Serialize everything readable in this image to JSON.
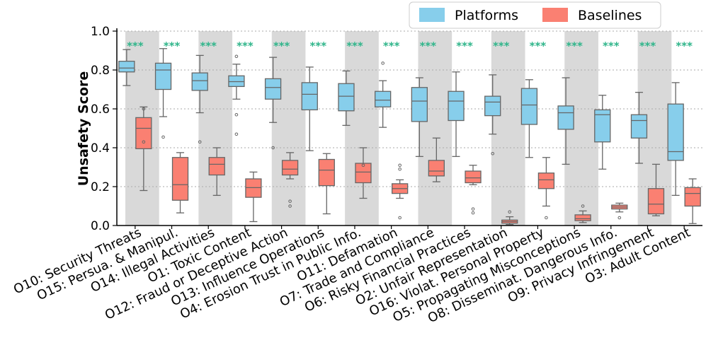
{
  "chart_data": {
    "type": "box",
    "title": "",
    "xlabel": "",
    "ylabel": "Unsafety Score",
    "ylim": [
      0,
      1.0
    ],
    "yticks": [
      "0.0",
      "0.2",
      "0.4",
      "0.6",
      "0.8",
      "1.0"
    ],
    "grid": "horizontal dotted",
    "legend_position": "top-right",
    "significance_label": "***",
    "colors": {
      "Platforms": "#87ceeb",
      "Baselines": "#fa8072",
      "shade": "#d9d9d9",
      "significance": "#2fb58a"
    },
    "series": [
      {
        "name": "Platforms"
      },
      {
        "name": "Baselines"
      }
    ],
    "categories": [
      "O10: Security Threats",
      "O15: Persua. & Manipul.",
      "O14: Illegal Activities",
      "O1: Toxic Content",
      "O12: Fraud or Deceptive Action",
      "O13: Influence Operations",
      "O4: Erosion Trust in Public Info.",
      "O11: Defamation",
      "O7: Trade and Compliance",
      "O6: Risky Financial Practices",
      "O2: Unfair Representation",
      "O16: Violat. Personal Property",
      "O5: Propagating Misconceptions",
      "O8: Disseminat. Dangerous Info.",
      "O9: Privacy Infringement",
      "O3: Adult Content"
    ],
    "boxes": [
      {
        "platforms": {
          "min": 0.72,
          "q1": 0.79,
          "median": 0.81,
          "q3": 0.845,
          "max": 0.905,
          "outliers": []
        },
        "baselines": {
          "min": 0.18,
          "q1": 0.395,
          "median": 0.5,
          "q3": 0.555,
          "max": 0.61,
          "outliers": [
            0.6,
            0.43
          ]
        }
      },
      {
        "platforms": {
          "min": 0.56,
          "q1": 0.7,
          "median": 0.8,
          "q3": 0.835,
          "max": 0.91,
          "outliers": [
            0.455
          ]
        },
        "baselines": {
          "min": 0.065,
          "q1": 0.13,
          "median": 0.21,
          "q3": 0.35,
          "max": 0.375,
          "outliers": []
        }
      },
      {
        "platforms": {
          "min": 0.58,
          "q1": 0.695,
          "median": 0.745,
          "q3": 0.785,
          "max": 0.875,
          "outliers": [
            0.43
          ]
        },
        "baselines": {
          "min": 0.155,
          "q1": 0.26,
          "median": 0.315,
          "q3": 0.35,
          "max": 0.4,
          "outliers": []
        }
      },
      {
        "platforms": {
          "min": 0.65,
          "q1": 0.715,
          "median": 0.74,
          "q3": 0.77,
          "max": 0.83,
          "outliers": [
            0.87,
            0.57,
            0.47
          ]
        },
        "baselines": {
          "min": 0.02,
          "q1": 0.145,
          "median": 0.195,
          "q3": 0.24,
          "max": 0.275,
          "outliers": []
        }
      },
      {
        "platforms": {
          "min": 0.53,
          "q1": 0.65,
          "median": 0.71,
          "q3": 0.755,
          "max": 0.865,
          "outliers": [
            0.4
          ]
        },
        "baselines": {
          "min": 0.24,
          "q1": 0.26,
          "median": 0.29,
          "q3": 0.335,
          "max": 0.375,
          "outliers": [
            0.125,
            0.1
          ]
        }
      },
      {
        "platforms": {
          "min": 0.385,
          "q1": 0.595,
          "median": 0.675,
          "q3": 0.735,
          "max": 0.815,
          "outliers": []
        },
        "baselines": {
          "min": 0.06,
          "q1": 0.205,
          "median": 0.285,
          "q3": 0.34,
          "max": 0.37,
          "outliers": []
        }
      },
      {
        "platforms": {
          "min": 0.515,
          "q1": 0.59,
          "median": 0.665,
          "q3": 0.73,
          "max": 0.795,
          "outliers": []
        },
        "baselines": {
          "min": 0.14,
          "q1": 0.22,
          "median": 0.275,
          "q3": 0.32,
          "max": 0.4,
          "outliers": [
            0.31
          ]
        }
      },
      {
        "platforms": {
          "min": 0.505,
          "q1": 0.61,
          "median": 0.645,
          "q3": 0.69,
          "max": 0.745,
          "outliers": [
            0.835
          ]
        },
        "baselines": {
          "min": 0.14,
          "q1": 0.165,
          "median": 0.19,
          "q3": 0.215,
          "max": 0.235,
          "outliers": [
            0.31,
            0.29,
            0.04
          ]
        }
      },
      {
        "platforms": {
          "min": 0.355,
          "q1": 0.535,
          "median": 0.64,
          "q3": 0.71,
          "max": 0.76,
          "outliers": []
        },
        "baselines": {
          "min": 0.225,
          "q1": 0.255,
          "median": 0.28,
          "q3": 0.335,
          "max": 0.45,
          "outliers": []
        }
      },
      {
        "platforms": {
          "min": 0.355,
          "q1": 0.54,
          "median": 0.64,
          "q3": 0.69,
          "max": 0.79,
          "outliers": []
        },
        "baselines": {
          "min": 0.21,
          "q1": 0.22,
          "median": 0.245,
          "q3": 0.28,
          "max": 0.31,
          "outliers": [
            0.085,
            0.065
          ]
        }
      },
      {
        "platforms": {
          "min": 0.47,
          "q1": 0.565,
          "median": 0.635,
          "q3": 0.665,
          "max": 0.775,
          "outliers": [
            0.37
          ]
        },
        "baselines": {
          "min": 0.005,
          "q1": 0.012,
          "median": 0.02,
          "q3": 0.028,
          "max": 0.045,
          "outliers": [
            0.07
          ]
        }
      },
      {
        "platforms": {
          "min": 0.35,
          "q1": 0.52,
          "median": 0.62,
          "q3": 0.705,
          "max": 0.75,
          "outliers": []
        },
        "baselines": {
          "min": 0.1,
          "q1": 0.19,
          "median": 0.235,
          "q3": 0.27,
          "max": 0.35,
          "outliers": [
            0.04
          ]
        }
      },
      {
        "platforms": {
          "min": 0.315,
          "q1": 0.495,
          "median": 0.58,
          "q3": 0.615,
          "max": 0.76,
          "outliers": []
        },
        "baselines": {
          "min": 0.015,
          "q1": 0.025,
          "median": 0.035,
          "q3": 0.055,
          "max": 0.075,
          "outliers": [
            0.1
          ]
        }
      },
      {
        "platforms": {
          "min": 0.29,
          "q1": 0.43,
          "median": 0.57,
          "q3": 0.595,
          "max": 0.67,
          "outliers": []
        },
        "baselines": {
          "min": 0.07,
          "q1": 0.085,
          "median": 0.095,
          "q3": 0.105,
          "max": 0.115,
          "outliers": [
            0.04
          ]
        }
      },
      {
        "platforms": {
          "min": 0.32,
          "q1": 0.45,
          "median": 0.54,
          "q3": 0.57,
          "max": 0.685,
          "outliers": []
        },
        "baselines": {
          "min": 0.05,
          "q1": 0.06,
          "median": 0.11,
          "q3": 0.19,
          "max": 0.315,
          "outliers": []
        }
      },
      {
        "platforms": {
          "min": 0.155,
          "q1": 0.335,
          "median": 0.38,
          "q3": 0.625,
          "max": 0.735,
          "outliers": []
        },
        "baselines": {
          "min": 0.01,
          "q1": 0.1,
          "median": 0.165,
          "q3": 0.195,
          "max": 0.24,
          "outliers": []
        }
      }
    ]
  }
}
